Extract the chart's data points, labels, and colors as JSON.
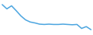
{
  "values": [
    92,
    78,
    88,
    72,
    55,
    42,
    35,
    32,
    28,
    27,
    28,
    27,
    27,
    28,
    27,
    26,
    27,
    14,
    20,
    10
  ],
  "line_color": "#4da6e0",
  "line_width": 1.1,
  "background_color": "#ffffff",
  "xlim": [
    -0.3,
    19.3
  ],
  "ylim": [
    -5,
    105
  ]
}
